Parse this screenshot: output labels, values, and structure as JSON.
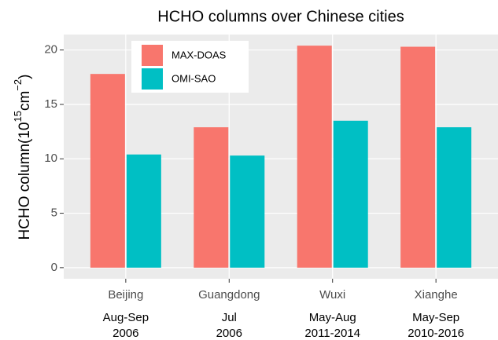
{
  "chart_data": {
    "type": "bar",
    "title": "HCHO columns over Chinese cities",
    "y_label_parts": [
      "HCHO column(10",
      "15",
      "cm",
      "−2",
      ")"
    ],
    "categories": [
      "Beijing",
      "Guangdong",
      "Wuxi",
      "Xianghe"
    ],
    "category_sublabels": [
      [
        "Aug-Sep",
        "2006"
      ],
      [
        "Jul",
        "2006"
      ],
      [
        "May-Aug",
        "2011-2014"
      ],
      [
        "May-Sep",
        "2010-2016"
      ]
    ],
    "series": [
      {
        "name": "MAX-DOAS",
        "color": "#F8766D",
        "values": [
          17.8,
          12.9,
          20.4,
          20.3
        ]
      },
      {
        "name": "OMI-SAO",
        "color": "#00BFC4",
        "values": [
          10.4,
          10.3,
          13.5,
          12.9
        ]
      }
    ],
    "ylim": [
      -1.02,
      21.42
    ],
    "yticks": [
      0,
      5,
      10,
      15,
      20
    ],
    "grid": true,
    "legend_position": "top-left"
  }
}
